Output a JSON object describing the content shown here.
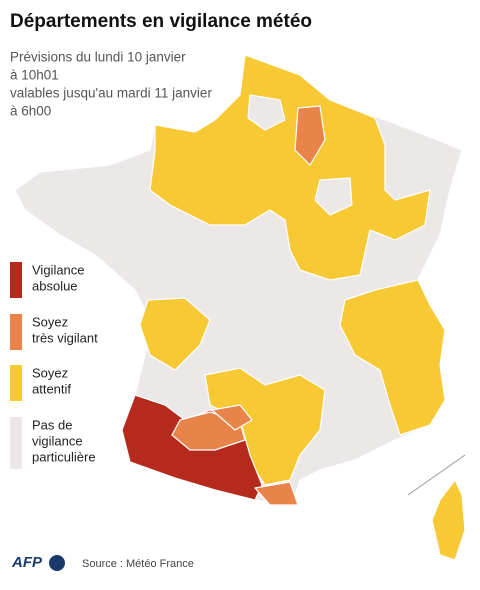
{
  "header": {
    "title": "Départements en vigilance météo",
    "subtitle": [
      "Prévisions du lundi 10 janvier",
      "à 10h01",
      "valables jusqu'au mardi 11 janvier",
      "à 6h00"
    ]
  },
  "legend": [
    {
      "lines": [
        "Vigilance",
        "absolue"
      ],
      "color": "#b52a1c"
    },
    {
      "lines": [
        "Soyez",
        "très vigilant"
      ],
      "color": "#e8844a"
    },
    {
      "lines": [
        "Soyez",
        "attentif"
      ],
      "color": "#f7c934"
    },
    {
      "lines": [
        "Pas de",
        "vigilance",
        "particulière"
      ],
      "color": "#ece8e8"
    }
  ],
  "footer": {
    "logo": "AFP",
    "source": "Source : Météo France"
  }
}
